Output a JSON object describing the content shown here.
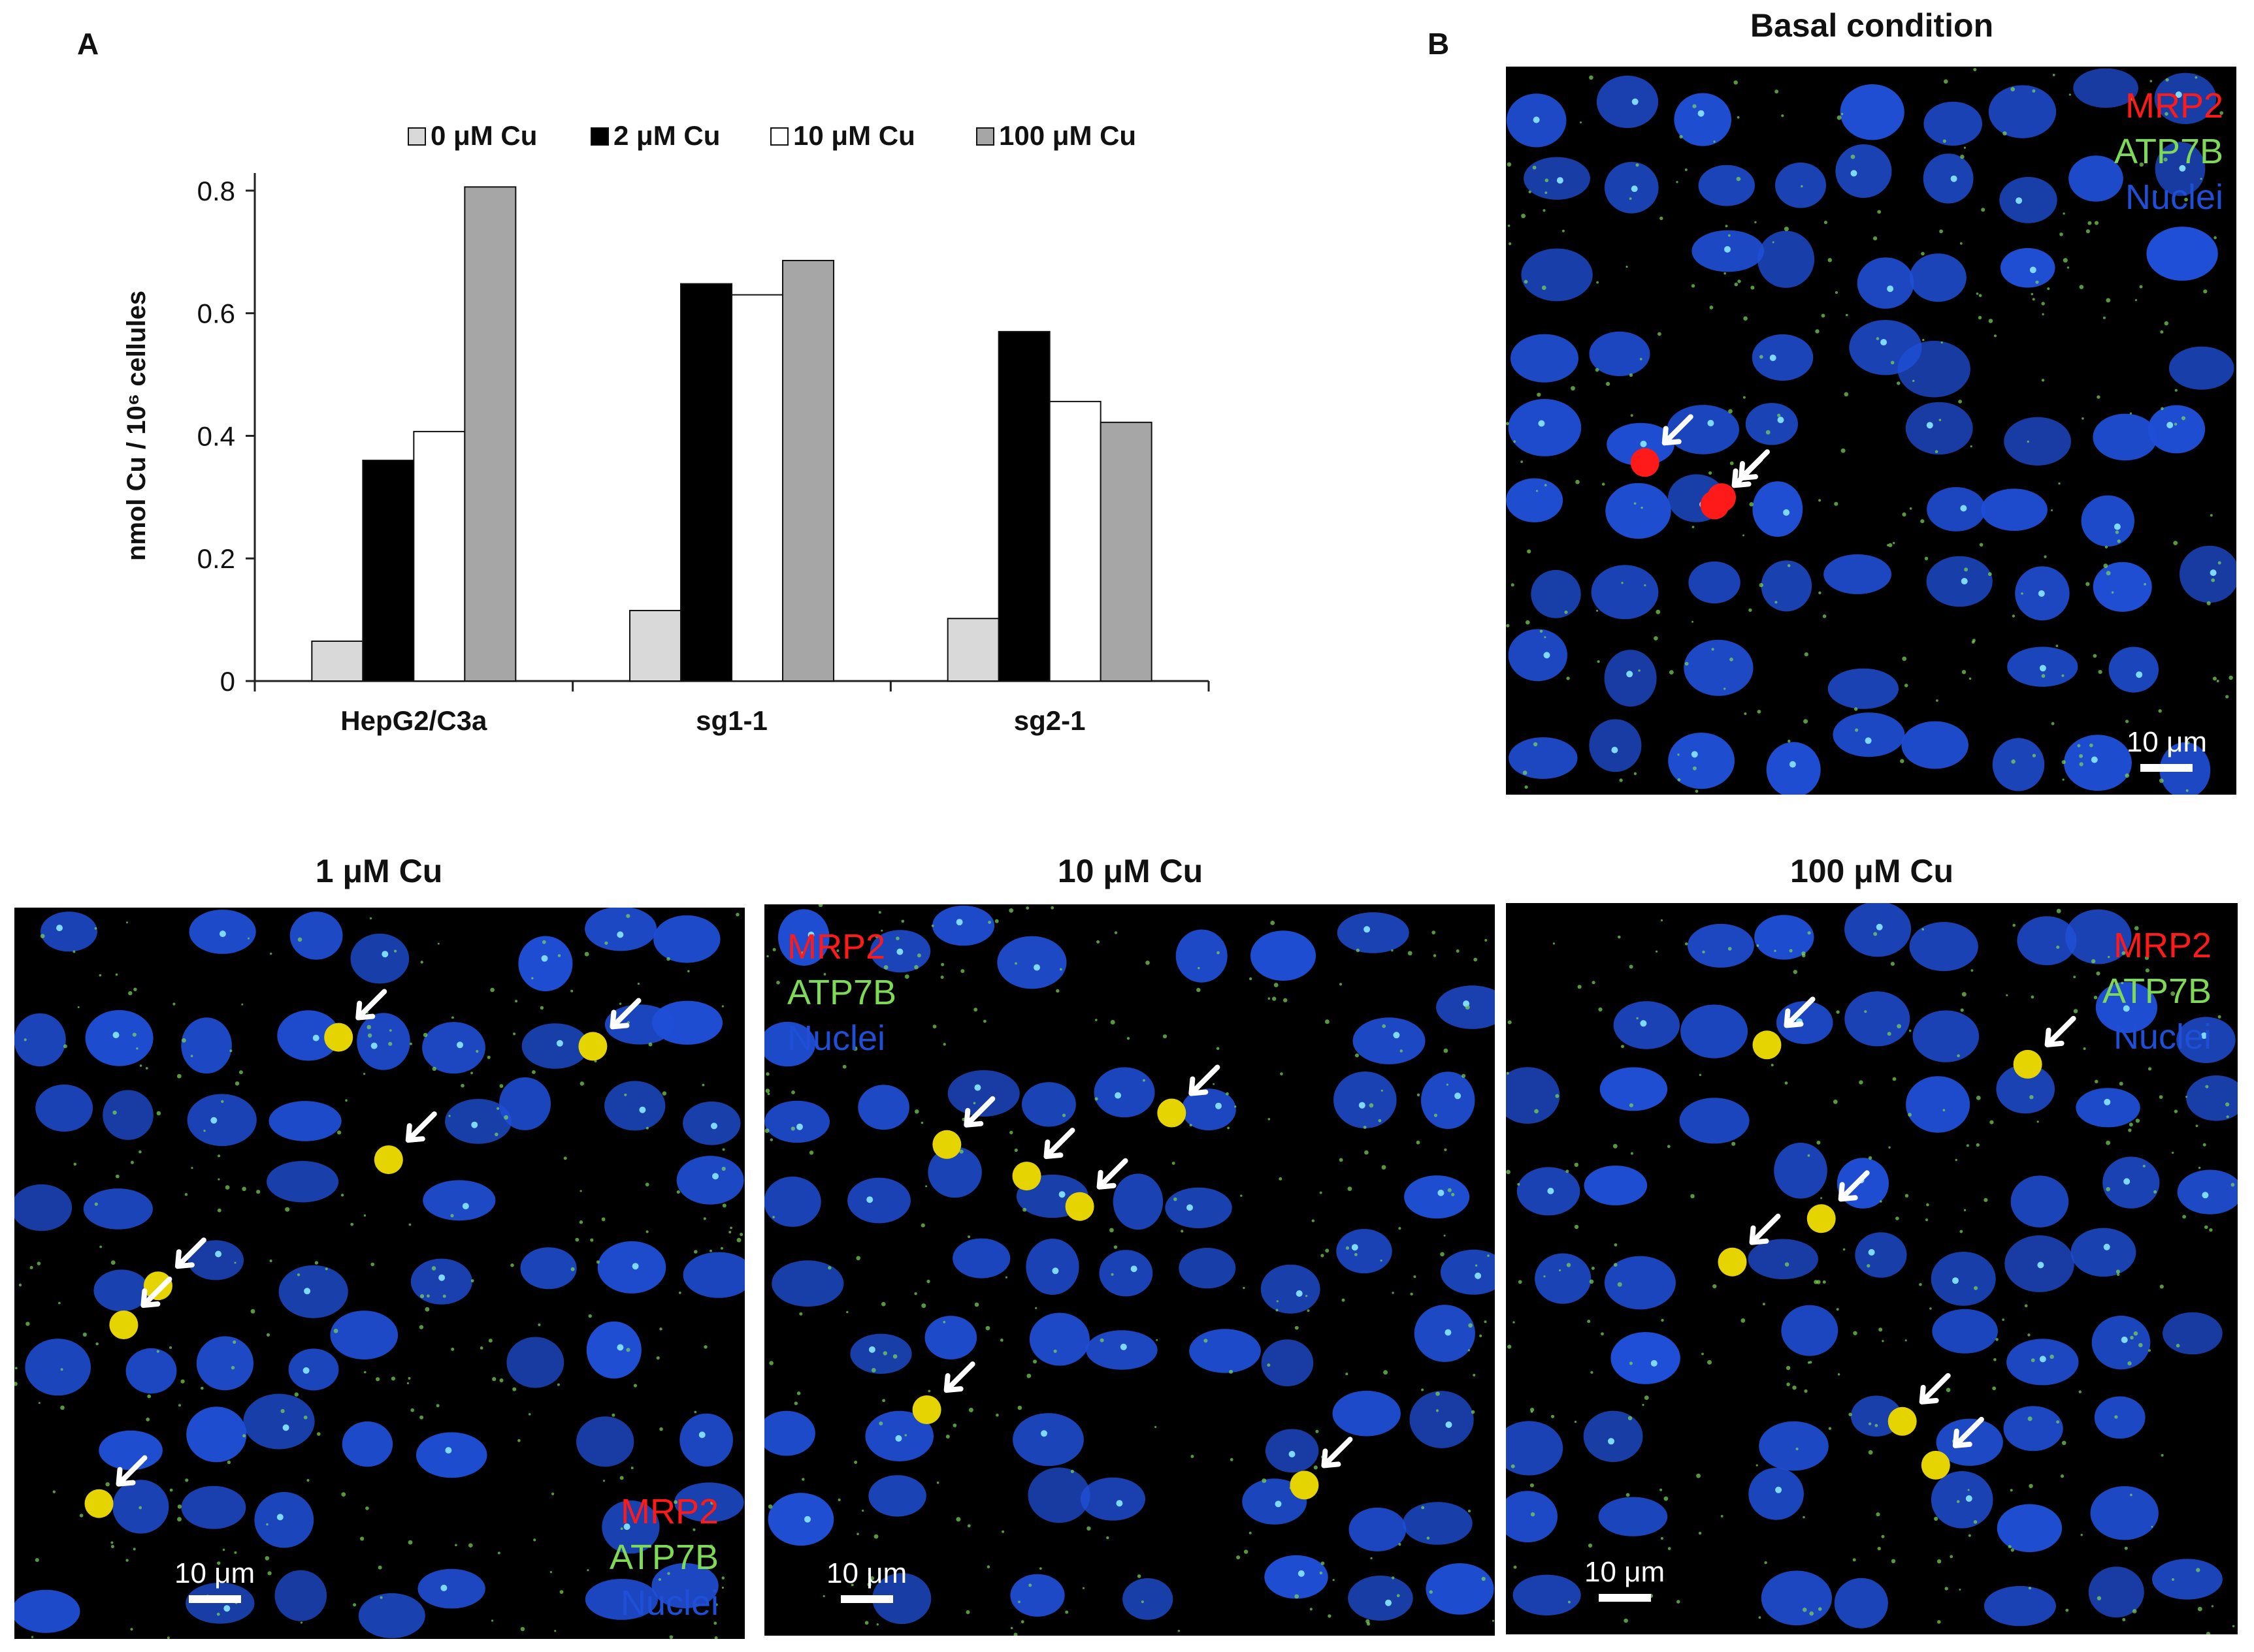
{
  "panels": {
    "a_letter": "A",
    "b_letter": "B",
    "basal_title": "Basal condition",
    "cu1_title": "1 μM Cu",
    "cu10_title": "10 μM Cu",
    "cu100_title": "100 μM Cu"
  },
  "stain_legend": {
    "mrp2": "MRP2",
    "atp7b": "ATP7B",
    "nuclei": "Nuclei",
    "mrp2_color": "#ff1a1a",
    "atp7b_color": "#7ed957",
    "nuclei_color": "#1f4fd6"
  },
  "scale_bar_label": "10 μm",
  "chart_data": {
    "type": "bar",
    "title": "",
    "xlabel": "",
    "ylabel": "nmol Cu / 10⁶ cellules",
    "ylim": [
      0,
      0.85
    ],
    "yticks": [
      "0",
      "0.2",
      "0.4",
      "0.6",
      "0.8"
    ],
    "ytick_values": [
      0,
      0.2,
      0.4,
      0.6,
      0.8
    ],
    "categories": [
      "HepG2/C3a",
      "sg1-1",
      "sg2-1"
    ],
    "legend_position": "top",
    "series": [
      {
        "name": "0 μM Cu",
        "color": "#d9d9d9",
        "values": [
          0.065,
          0.115,
          0.102
        ]
      },
      {
        "name": "2 μM Cu",
        "color": "#000000",
        "values": [
          0.36,
          0.648,
          0.57
        ]
      },
      {
        "name": "10 μM Cu",
        "color": "#ffffff",
        "values": [
          0.407,
          0.63,
          0.456
        ]
      },
      {
        "name": "100 μM Cu",
        "color": "#a6a6a6",
        "values": [
          0.806,
          0.686,
          0.422
        ]
      }
    ]
  }
}
